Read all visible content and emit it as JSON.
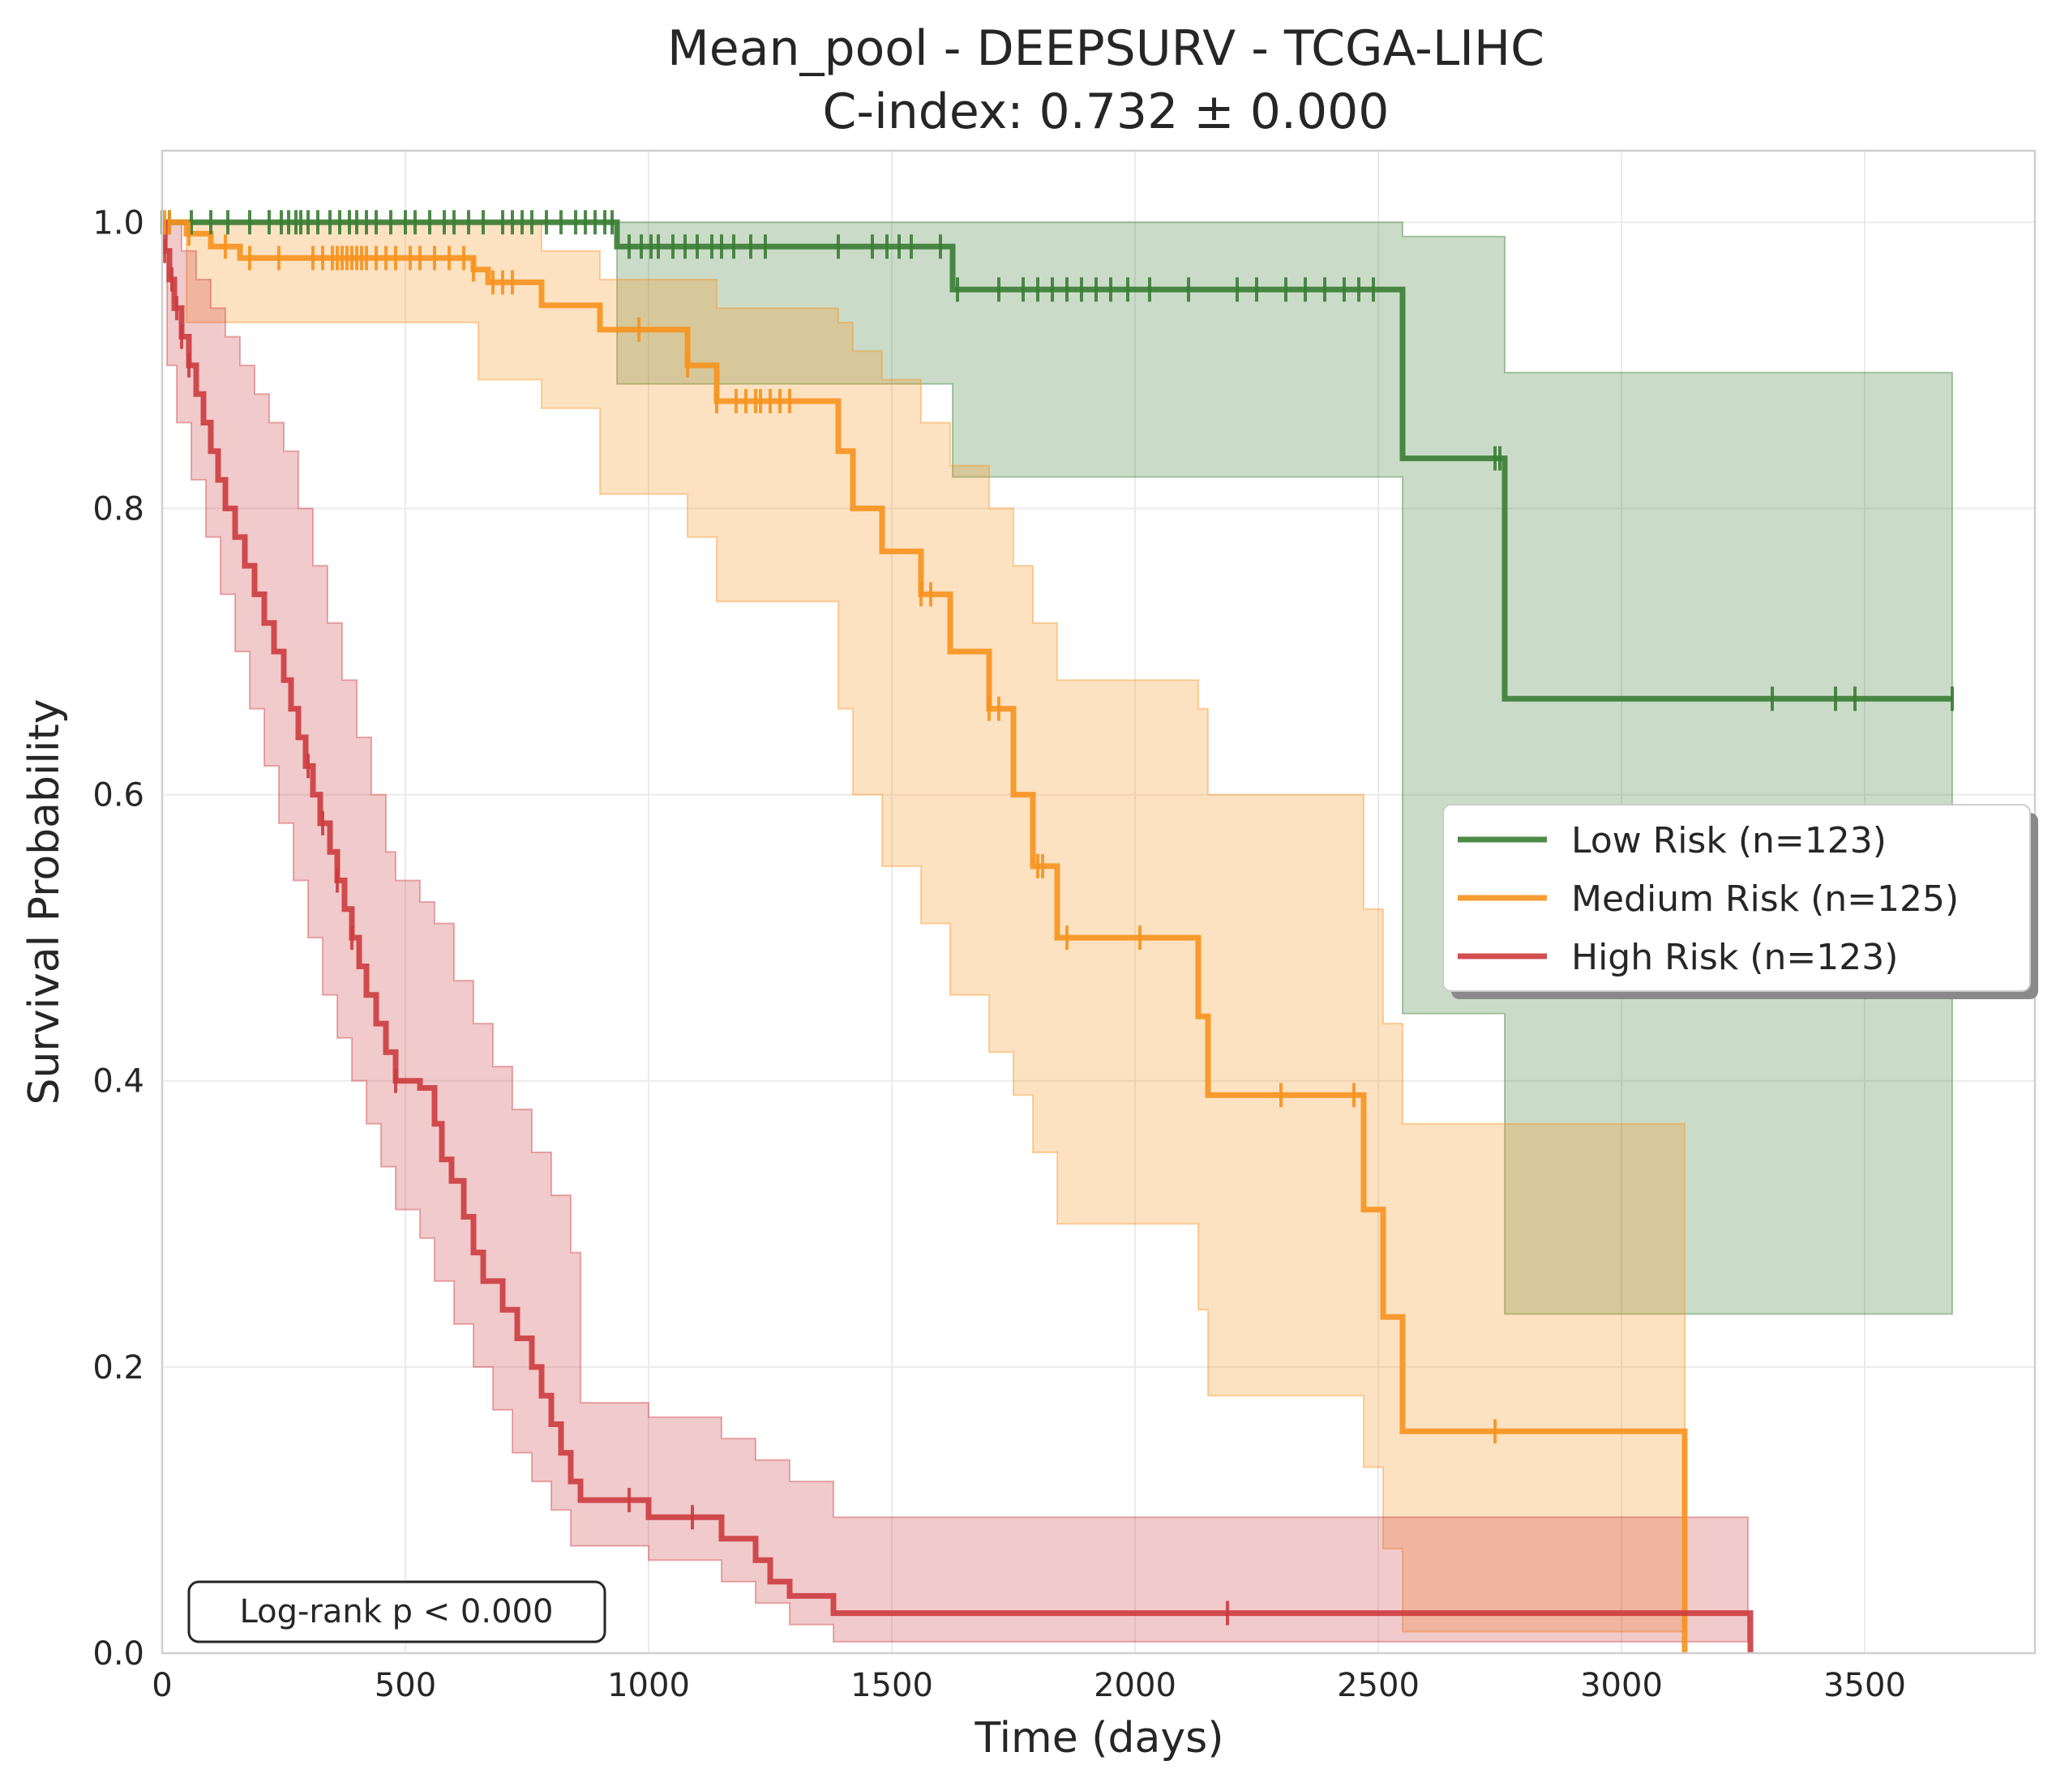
{
  "chart_data": {
    "type": "line",
    "title": "Mean_pool - DEEPSURV - TCGA-LIHC",
    "subtitle": "C-index: 0.732 ± 0.000",
    "xlabel": "Time (days)",
    "ylabel": "Survival Probability",
    "xlim": [
      0,
      3850
    ],
    "ylim": [
      0,
      1.05
    ],
    "x_ticks": [
      0,
      500,
      1000,
      1500,
      2000,
      2500,
      3000,
      3500
    ],
    "x_tick_labels": [
      "0",
      "500",
      "1000",
      "1500",
      "2000",
      "2500",
      "3000",
      "3500"
    ],
    "y_ticks": [
      0.0,
      0.2,
      0.4,
      0.6,
      0.8,
      1.0
    ],
    "y_tick_labels": [
      "0.0",
      "0.2",
      "0.4",
      "0.6",
      "0.8",
      "1.0"
    ],
    "grid": true,
    "legend_position": "center-right",
    "annotation": "Log-rank p < 0.000",
    "series": [
      {
        "name": "Low Risk (n=123)",
        "color": "#3a7d34",
        "steps": [
          [
            0,
            1.0
          ],
          [
            935,
            0.983
          ],
          [
            1625,
            0.953
          ],
          [
            2550,
            0.835
          ],
          [
            2760,
            0.667
          ],
          [
            3680,
            0.667
          ]
        ],
        "ci_lower": [
          [
            0,
            1.0
          ],
          [
            935,
            0.887
          ],
          [
            1625,
            0.822
          ],
          [
            2550,
            0.447
          ],
          [
            2760,
            0.237
          ],
          [
            3680,
            0.237
          ]
        ],
        "ci_upper": [
          [
            0,
            1.0
          ],
          [
            935,
            1.0
          ],
          [
            1625,
            1.0
          ],
          [
            2550,
            0.99
          ],
          [
            2760,
            0.96
          ],
          [
            2760,
            0.895
          ],
          [
            3680,
            0.895
          ]
        ],
        "censored": [
          0,
          15,
          60,
          100,
          135,
          180,
          220,
          245,
          260,
          275,
          285,
          300,
          320,
          345,
          365,
          385,
          400,
          420,
          440,
          470,
          500,
          520,
          550,
          580,
          600,
          630,
          660,
          700,
          720,
          740,
          760,
          790,
          820,
          850,
          870,
          890,
          910,
          925,
          960,
          985,
          1005,
          1020,
          1050,
          1075,
          1100,
          1130,
          1150,
          1175,
          1210,
          1240,
          1390,
          1460,
          1490,
          1515,
          1540,
          1600,
          1635,
          1720,
          1770,
          1800,
          1830,
          1860,
          1890,
          1920,
          1950,
          1985,
          2030,
          2110,
          2210,
          2250,
          2310,
          2350,
          2390,
          2430,
          2460,
          2490,
          2740,
          2750,
          3310,
          3440,
          3480,
          3680
        ]
      },
      {
        "name": "Medium Risk (n=125)",
        "color": "#f7921e",
        "steps": [
          [
            0,
            1.0
          ],
          [
            50,
            0.992
          ],
          [
            100,
            0.983
          ],
          [
            160,
            0.975
          ],
          [
            640,
            0.967
          ],
          [
            670,
            0.958
          ],
          [
            780,
            0.942
          ],
          [
            900,
            0.925
          ],
          [
            1080,
            0.9
          ],
          [
            1140,
            0.875
          ],
          [
            1370,
            0.875
          ],
          [
            1390,
            0.84
          ],
          [
            1420,
            0.8
          ],
          [
            1480,
            0.77
          ],
          [
            1560,
            0.74
          ],
          [
            1620,
            0.7
          ],
          [
            1700,
            0.66
          ],
          [
            1750,
            0.6
          ],
          [
            1790,
            0.55
          ],
          [
            1840,
            0.5
          ],
          [
            2130,
            0.445
          ],
          [
            2150,
            0.39
          ],
          [
            2470,
            0.31
          ],
          [
            2510,
            0.235
          ],
          [
            2550,
            0.155
          ],
          [
            3130,
            0.0
          ]
        ],
        "ci_lower": [
          [
            0,
            1.0
          ],
          [
            50,
            0.93
          ],
          [
            650,
            0.89
          ],
          [
            780,
            0.87
          ],
          [
            900,
            0.81
          ],
          [
            1080,
            0.78
          ],
          [
            1140,
            0.735
          ],
          [
            1390,
            0.66
          ],
          [
            1420,
            0.6
          ],
          [
            1480,
            0.55
          ],
          [
            1560,
            0.51
          ],
          [
            1620,
            0.46
          ],
          [
            1700,
            0.42
          ],
          [
            1750,
            0.39
          ],
          [
            1790,
            0.35
          ],
          [
            1840,
            0.3
          ],
          [
            2130,
            0.24
          ],
          [
            2150,
            0.18
          ],
          [
            2470,
            0.13
          ],
          [
            2510,
            0.073
          ],
          [
            2550,
            0.015
          ],
          [
            3130,
            0.015
          ]
        ],
        "ci_upper": [
          [
            0,
            1.0
          ],
          [
            650,
            1.0
          ],
          [
            780,
            0.98
          ],
          [
            900,
            0.96
          ],
          [
            1140,
            0.94
          ],
          [
            1390,
            0.93
          ],
          [
            1420,
            0.91
          ],
          [
            1480,
            0.89
          ],
          [
            1560,
            0.86
          ],
          [
            1620,
            0.83
          ],
          [
            1700,
            0.8
          ],
          [
            1750,
            0.76
          ],
          [
            1790,
            0.72
          ],
          [
            1840,
            0.68
          ],
          [
            2130,
            0.66
          ],
          [
            2150,
            0.6
          ],
          [
            2470,
            0.52
          ],
          [
            2510,
            0.44
          ],
          [
            2550,
            0.37
          ],
          [
            3130,
            0.37
          ]
        ],
        "censored": [
          5,
          15,
          55,
          130,
          180,
          240,
          310,
          330,
          350,
          360,
          370,
          380,
          390,
          400,
          410,
          420,
          440,
          460,
          480,
          510,
          530,
          560,
          590,
          620,
          640,
          680,
          700,
          720,
          980,
          1080,
          1140,
          1180,
          1200,
          1220,
          1230,
          1250,
          1270,
          1290,
          1560,
          1580,
          1700,
          1720,
          1800,
          1810,
          1860,
          2010,
          2300,
          2450,
          2740
        ]
      },
      {
        "name": "High Risk (n=123)",
        "color": "#cc3b3e",
        "steps": [
          [
            0,
            1.0
          ],
          [
            5,
            0.98
          ],
          [
            15,
            0.96
          ],
          [
            25,
            0.94
          ],
          [
            40,
            0.92
          ],
          [
            55,
            0.9
          ],
          [
            70,
            0.88
          ],
          [
            85,
            0.86
          ],
          [
            100,
            0.84
          ],
          [
            115,
            0.82
          ],
          [
            130,
            0.8
          ],
          [
            150,
            0.78
          ],
          [
            170,
            0.76
          ],
          [
            190,
            0.74
          ],
          [
            210,
            0.72
          ],
          [
            230,
            0.7
          ],
          [
            250,
            0.68
          ],
          [
            265,
            0.66
          ],
          [
            280,
            0.64
          ],
          [
            295,
            0.62
          ],
          [
            310,
            0.6
          ],
          [
            325,
            0.58
          ],
          [
            345,
            0.56
          ],
          [
            360,
            0.54
          ],
          [
            375,
            0.52
          ],
          [
            390,
            0.5
          ],
          [
            405,
            0.48
          ],
          [
            420,
            0.46
          ],
          [
            440,
            0.44
          ],
          [
            460,
            0.42
          ],
          [
            480,
            0.4
          ],
          [
            530,
            0.395
          ],
          [
            560,
            0.37
          ],
          [
            575,
            0.345
          ],
          [
            595,
            0.33
          ],
          [
            620,
            0.305
          ],
          [
            640,
            0.28
          ],
          [
            660,
            0.26
          ],
          [
            700,
            0.24
          ],
          [
            730,
            0.22
          ],
          [
            760,
            0.2
          ],
          [
            780,
            0.18
          ],
          [
            800,
            0.16
          ],
          [
            820,
            0.14
          ],
          [
            840,
            0.12
          ],
          [
            860,
            0.107
          ],
          [
            1000,
            0.095
          ],
          [
            1150,
            0.08
          ],
          [
            1220,
            0.065
          ],
          [
            1250,
            0.05
          ],
          [
            1290,
            0.04
          ],
          [
            1380,
            0.028
          ],
          [
            3260,
            0.028
          ],
          [
            3265,
            0.0
          ]
        ],
        "ci_lower": [
          [
            0,
            1.0
          ],
          [
            10,
            0.9
          ],
          [
            30,
            0.86
          ],
          [
            60,
            0.82
          ],
          [
            90,
            0.78
          ],
          [
            120,
            0.74
          ],
          [
            150,
            0.7
          ],
          [
            180,
            0.66
          ],
          [
            210,
            0.62
          ],
          [
            240,
            0.58
          ],
          [
            270,
            0.54
          ],
          [
            300,
            0.5
          ],
          [
            330,
            0.46
          ],
          [
            360,
            0.43
          ],
          [
            390,
            0.4
          ],
          [
            420,
            0.37
          ],
          [
            450,
            0.34
          ],
          [
            480,
            0.31
          ],
          [
            530,
            0.29
          ],
          [
            560,
            0.26
          ],
          [
            600,
            0.23
          ],
          [
            640,
            0.2
          ],
          [
            680,
            0.17
          ],
          [
            720,
            0.14
          ],
          [
            760,
            0.12
          ],
          [
            800,
            0.1
          ],
          [
            840,
            0.075
          ],
          [
            1000,
            0.065
          ],
          [
            1150,
            0.05
          ],
          [
            1220,
            0.035
          ],
          [
            1290,
            0.02
          ],
          [
            1380,
            0.008
          ],
          [
            3260,
            0.008
          ]
        ],
        "ci_upper": [
          [
            0,
            1.0
          ],
          [
            20,
            1.0
          ],
          [
            40,
            0.98
          ],
          [
            70,
            0.96
          ],
          [
            100,
            0.94
          ],
          [
            130,
            0.92
          ],
          [
            160,
            0.9
          ],
          [
            190,
            0.88
          ],
          [
            220,
            0.86
          ],
          [
            250,
            0.84
          ],
          [
            280,
            0.8
          ],
          [
            310,
            0.76
          ],
          [
            340,
            0.72
          ],
          [
            370,
            0.68
          ],
          [
            400,
            0.64
          ],
          [
            430,
            0.6
          ],
          [
            460,
            0.56
          ],
          [
            480,
            0.54
          ],
          [
            530,
            0.525
          ],
          [
            560,
            0.51
          ],
          [
            600,
            0.47
          ],
          [
            640,
            0.44
          ],
          [
            680,
            0.41
          ],
          [
            720,
            0.38
          ],
          [
            760,
            0.35
          ],
          [
            800,
            0.32
          ],
          [
            840,
            0.28
          ],
          [
            860,
            0.175
          ],
          [
            1000,
            0.165
          ],
          [
            1150,
            0.15
          ],
          [
            1220,
            0.135
          ],
          [
            1290,
            0.12
          ],
          [
            1380,
            0.095
          ],
          [
            3260,
            0.095
          ]
        ],
        "censored": [
          5,
          20,
          30,
          40,
          55,
          300,
          330,
          360,
          390,
          480,
          960,
          1090,
          2190
        ]
      }
    ]
  }
}
